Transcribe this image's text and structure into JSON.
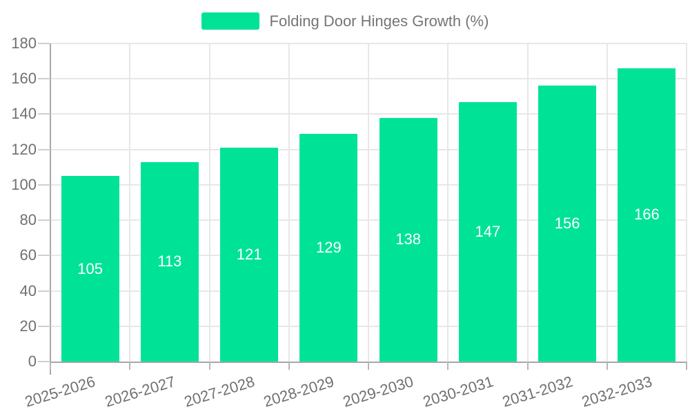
{
  "legend": {
    "label": "Folding Door Hinges Growth (%)",
    "swatch_color": "#00E396",
    "position": "top"
  },
  "chart_data": {
    "type": "bar",
    "title": "Folding Door Hinges Growth (%)",
    "categories": [
      "2025-2026",
      "2026-2027",
      "2027-2028",
      "2028-2029",
      "2029-2030",
      "2030-2031",
      "2031-2032",
      "2032-2033"
    ],
    "series": [
      {
        "name": "Folding Door Hinges Growth (%)",
        "values": [
          105,
          113,
          121,
          129,
          138,
          147,
          156,
          166
        ]
      }
    ],
    "xlabel": "",
    "ylabel": "",
    "ylim": [
      0,
      180
    ],
    "yticks": [
      0,
      20,
      40,
      60,
      80,
      100,
      120,
      140,
      160,
      180
    ],
    "grid": true,
    "legend_position": "top",
    "bar_color": "#00E396",
    "bar_value_label_color": "#ffffff",
    "tick_label_color": "#707070",
    "gridline_color": "#e7e7e7",
    "axis_line_color": "#a6a6a6"
  }
}
